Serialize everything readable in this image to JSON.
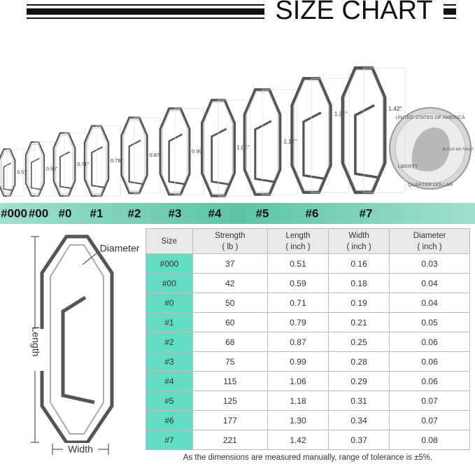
{
  "header": {
    "title": "SIZE CHART"
  },
  "sizes": [
    {
      "label": "#000",
      "length": "0.51''"
    },
    {
      "label": "#00",
      "length": "0.59''"
    },
    {
      "label": "#0",
      "length": "0.71''"
    },
    {
      "label": "#1",
      "length": "0.79''"
    },
    {
      "label": "#2",
      "length": "0.87''"
    },
    {
      "label": "#3",
      "length": "0.99''"
    },
    {
      "label": "#4",
      "length": "1.06''"
    },
    {
      "label": "#5",
      "length": "1.18''"
    },
    {
      "label": "#6",
      "length": "1.30''"
    },
    {
      "label": "#7",
      "length": "1.42''"
    }
  ],
  "coin": {
    "top": "UNITED STATES OF AMERICA",
    "motto": "IN GOD WE TRUST",
    "liberty": "LIBERTY",
    "bottom": "QUARTER DOLLAR"
  },
  "diagram": {
    "diameter": "Diameter",
    "length": "Length",
    "width": "Width"
  },
  "table": {
    "columns": [
      {
        "label": "Size"
      },
      {
        "label": "Strength",
        "unit": "( lb )"
      },
      {
        "label": "Length",
        "unit": "( inch )"
      },
      {
        "label": "Width",
        "unit": "( inch )"
      },
      {
        "label": "Diameter",
        "unit": "( inch )"
      }
    ],
    "rows": [
      [
        "#000",
        "37",
        "0.51",
        "0.16",
        "0.03"
      ],
      [
        "#00",
        "42",
        "0.59",
        "0.18",
        "0.04"
      ],
      [
        "#0",
        "50",
        "0.71",
        "0.19",
        "0.04"
      ],
      [
        "#1",
        "60",
        "0.79",
        "0.21",
        "0.05"
      ],
      [
        "#2",
        "68",
        "0.87",
        "0.25",
        "0.06"
      ],
      [
        "#3",
        "75",
        "0.99",
        "0.28",
        "0.06"
      ],
      [
        "#4",
        "115",
        "1.06",
        "0.29",
        "0.06"
      ],
      [
        "#5",
        "125",
        "1.18",
        "0.31",
        "0.07"
      ],
      [
        "#6",
        "177",
        "1.30",
        "0.34",
        "0.07"
      ],
      [
        "#7",
        "221",
        "1.42",
        "0.37",
        "0.08"
      ]
    ]
  },
  "footnote": "As the dimensions are measured manually, range of tolerance is ±5%."
}
